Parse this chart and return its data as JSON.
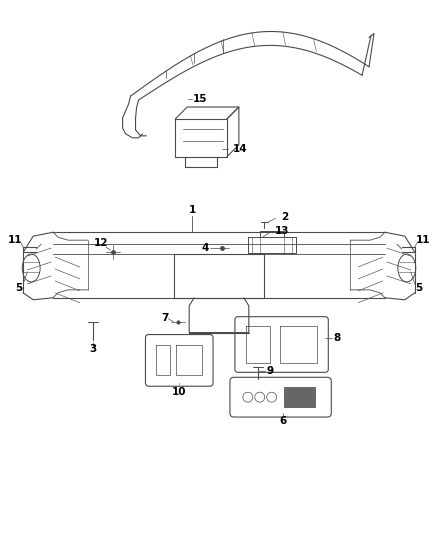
{
  "bg_color": "#ffffff",
  "line_color": "#4a4a4a",
  "label_color": "#000000",
  "label_fontsize": 7.5,
  "fig_width": 4.38,
  "fig_height": 5.33,
  "dpi": 100
}
